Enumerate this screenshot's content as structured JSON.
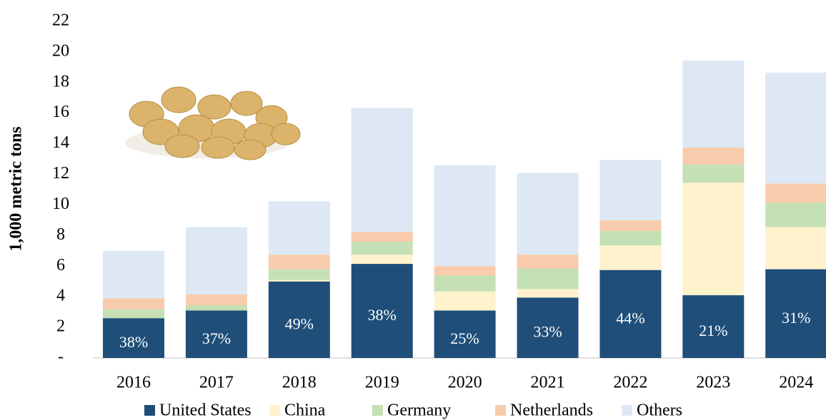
{
  "chart_data": {
    "type": "stacked-bar",
    "y_label": "1,000 metric tons",
    "categories": [
      "2016",
      "2017",
      "2018",
      "2019",
      "2020",
      "2021",
      "2022",
      "2023",
      "2024"
    ],
    "series": [
      {
        "name": "United States",
        "color": "#1f4e79",
        "values": [
          2.6,
          3.1,
          5.0,
          6.15,
          3.1,
          3.95,
          5.75,
          4.1,
          5.8
        ]
      },
      {
        "name": "China",
        "color": "#fff2cc",
        "values": [
          0,
          0,
          0.1,
          0.6,
          1.25,
          0.55,
          1.6,
          7.35,
          2.75
        ]
      },
      {
        "name": "Germany",
        "color": "#c5e0b4",
        "values": [
          0.6,
          0.35,
          0.7,
          0.85,
          1.05,
          1.35,
          0.95,
          1.2,
          1.6
        ]
      },
      {
        "name": "Netherlands",
        "color": "#f8cbad",
        "values": [
          0.7,
          0.7,
          0.95,
          0.65,
          0.6,
          0.9,
          0.7,
          1.1,
          1.25
        ]
      },
      {
        "name": "Others",
        "color": "#dde8f4",
        "values": [
          3.1,
          4.4,
          3.5,
          8.1,
          6.6,
          5.35,
          3.95,
          5.7,
          7.25
        ]
      }
    ],
    "us_share_labels": [
      "38%",
      "37%",
      "49%",
      "38%",
      "25%",
      "33%",
      "44%",
      "21%",
      "31%"
    ],
    "ylim": [
      0,
      22
    ],
    "yticks": [
      {
        "value": 0,
        "label": "-"
      },
      2,
      4,
      6,
      8,
      10,
      12,
      14,
      16,
      18,
      20,
      22
    ]
  }
}
